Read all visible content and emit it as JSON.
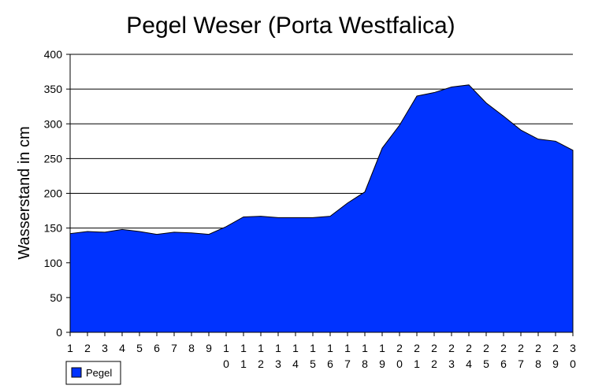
{
  "chart_data": {
    "type": "area",
    "title": "Pegel Weser (Porta Westfalica)",
    "xlabel": "",
    "ylabel": "Wasserstand in cm",
    "x": [
      "1",
      "2",
      "3",
      "4",
      "5",
      "6",
      "7",
      "8",
      "9",
      "10",
      "11",
      "12",
      "13",
      "14",
      "15",
      "16",
      "17",
      "18",
      "19",
      "20",
      "21",
      "22",
      "23",
      "24",
      "25",
      "26",
      "27",
      "28",
      "29",
      "30"
    ],
    "ylim": [
      0,
      400
    ],
    "yticks": [
      0,
      50,
      100,
      150,
      200,
      250,
      300,
      350,
      400
    ],
    "grid": true,
    "legend_position": "bottom-left",
    "series": [
      {
        "name": "Pegel",
        "color": "#0033ff",
        "values": [
          142,
          145,
          144,
          148,
          145,
          141,
          144,
          143,
          141,
          152,
          166,
          167,
          165,
          165,
          165,
          167,
          186,
          202,
          265,
          298,
          340,
          345,
          353,
          356,
          330,
          311,
          291,
          278,
          275,
          262
        ]
      }
    ]
  }
}
